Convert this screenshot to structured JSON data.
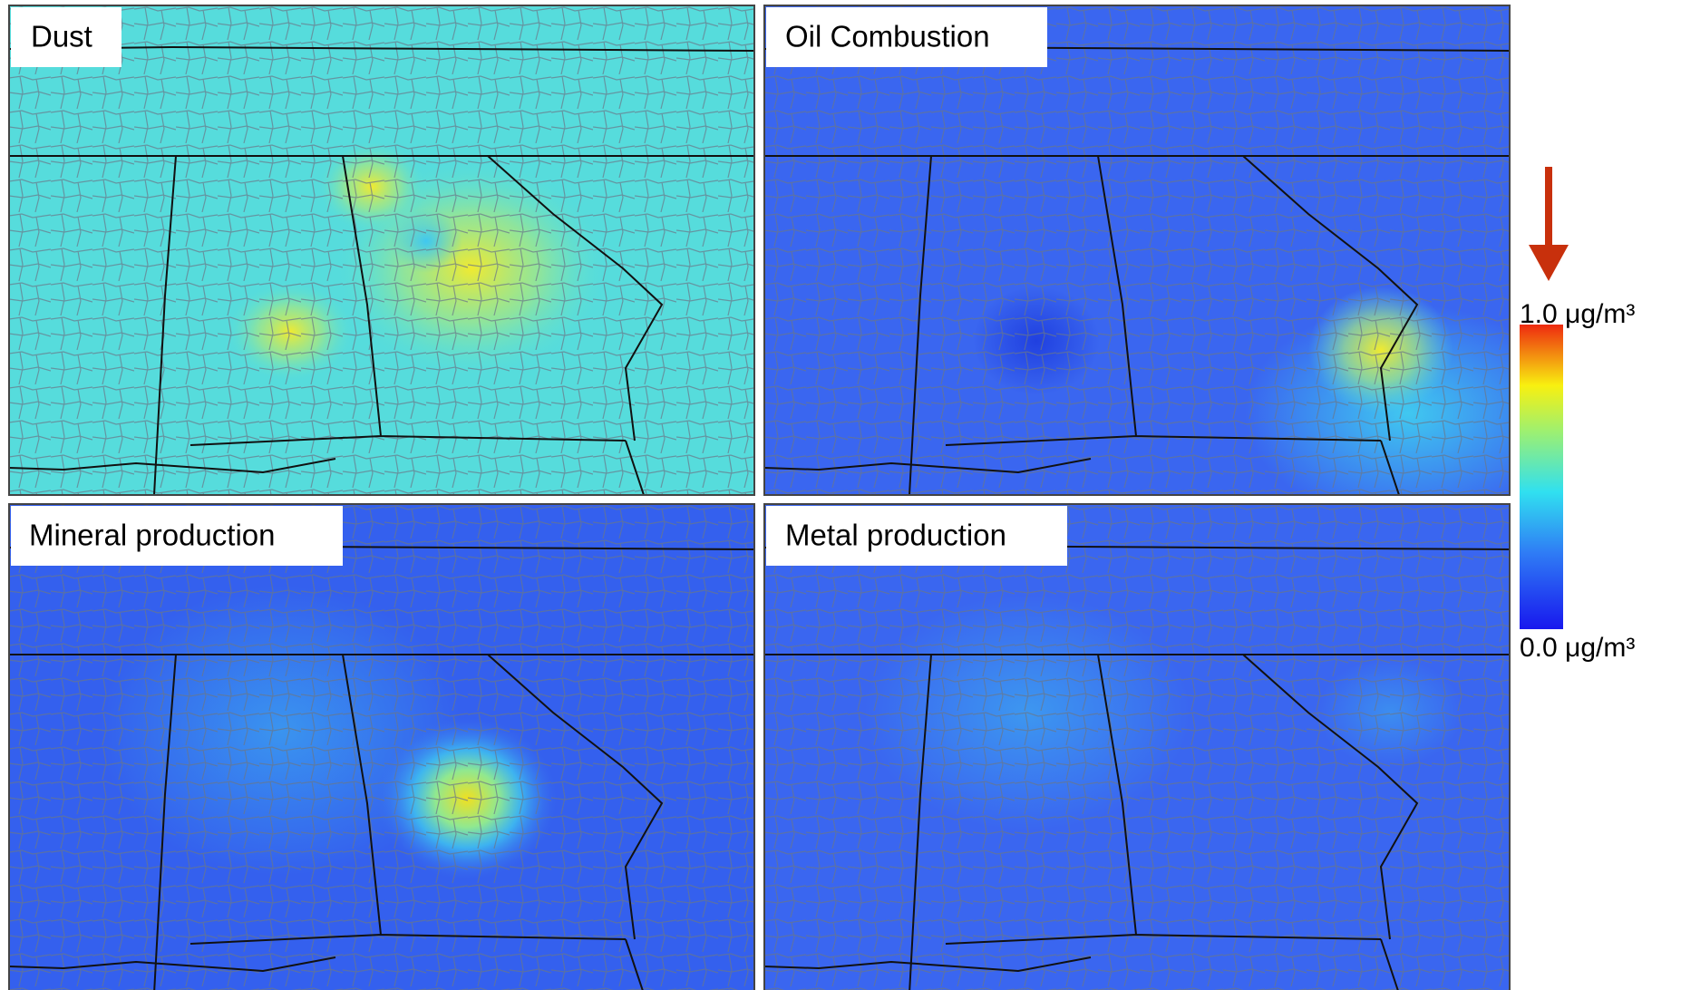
{
  "panels": [
    {
      "title": "Dust"
    },
    {
      "title": "Oil Combustion"
    },
    {
      "title": "Mineral production"
    },
    {
      "title": "Metal production"
    }
  ],
  "colorbar": {
    "max_label": "1.0 μg/m³",
    "min_label": "0.0 μg/m³"
  }
}
